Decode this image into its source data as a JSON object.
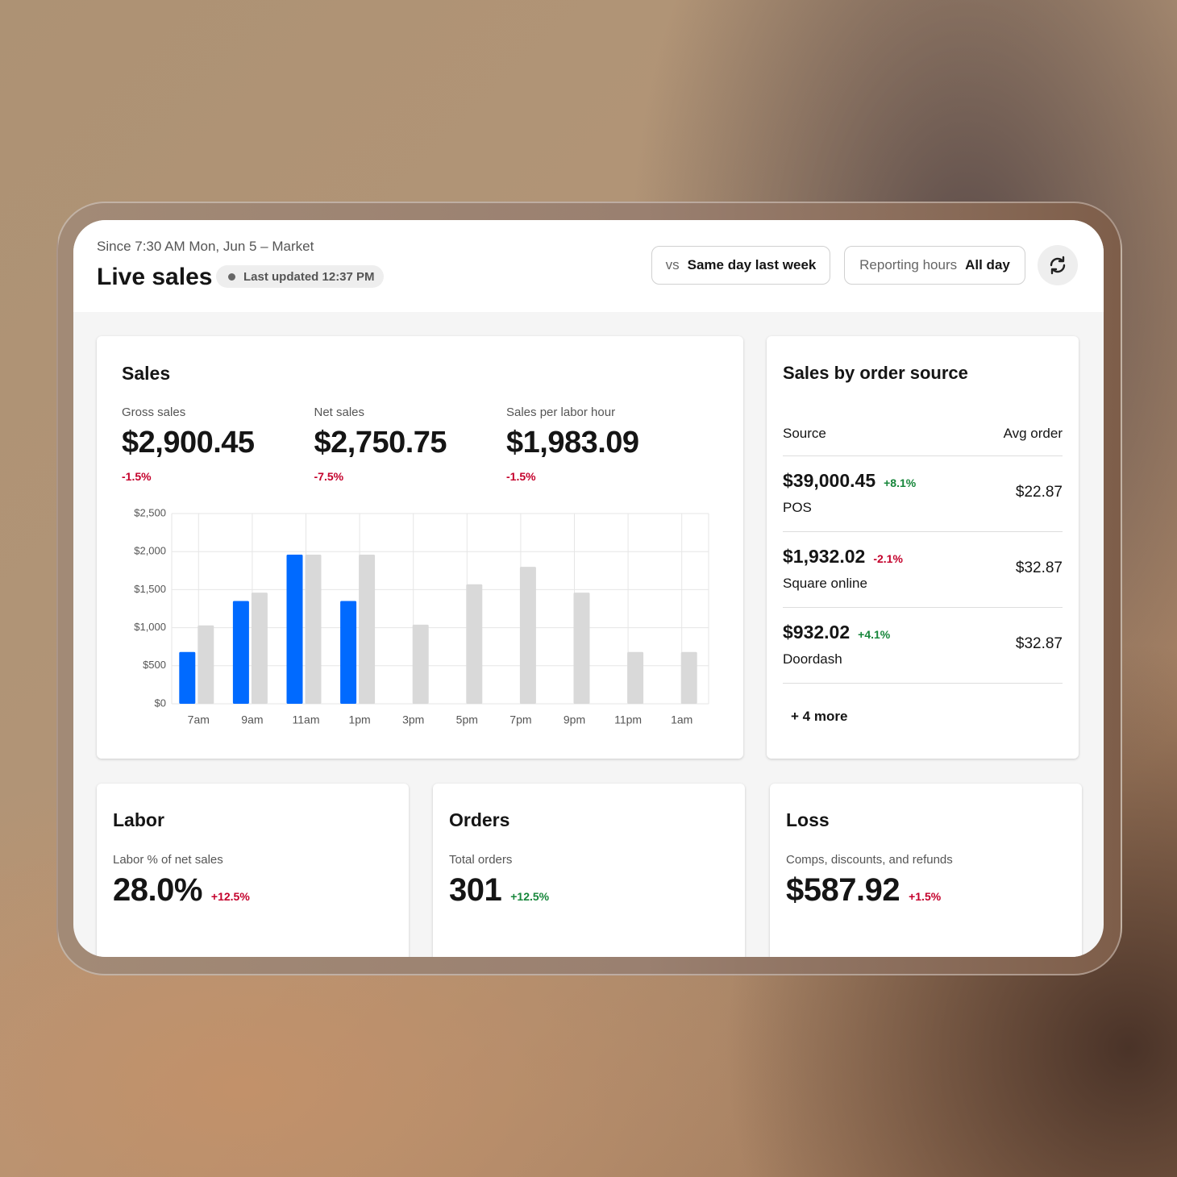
{
  "header": {
    "subtitle": "Since 7:30 AM Mon, Jun 5 – Market",
    "title": "Live sales",
    "status": "Last updated 12:37 PM",
    "compare": {
      "prefix": "vs",
      "value": "Same day last week"
    },
    "hours": {
      "label": "Reporting hours",
      "value": "All day"
    }
  },
  "sales": {
    "title": "Sales",
    "metrics": [
      {
        "label": "Gross sales",
        "value": "$2,900.45",
        "change": "-1.5%",
        "change_color": "#c4002b"
      },
      {
        "label": "Net sales",
        "value": "$2,750.75",
        "change": "-7.5%",
        "change_color": "#c4002b"
      },
      {
        "label": "Sales per labor hour",
        "value": "$1,983.09",
        "change": "-1.5%",
        "change_color": "#c4002b"
      }
    ]
  },
  "chart_data": {
    "type": "bar",
    "categories": [
      "7am",
      "9am",
      "11am",
      "1pm",
      "3pm",
      "5pm",
      "7pm",
      "9pm",
      "11pm",
      "1am"
    ],
    "series": [
      {
        "color": "#006aff",
        "values": [
          680,
          1350,
          1960,
          1350,
          null,
          null,
          null,
          null,
          null,
          null
        ]
      },
      {
        "color": "#d9d9d9",
        "values": [
          1030,
          1460,
          1960,
          1960,
          1040,
          1570,
          1800,
          1460,
          680,
          680
        ]
      }
    ],
    "ylim": [
      0,
      2500
    ],
    "yticks": [
      {
        "value": 0,
        "label": "$0"
      },
      {
        "value": 500,
        "label": "$500"
      },
      {
        "value": 1000,
        "label": "$1,000"
      },
      {
        "value": 1500,
        "label": "$1,500"
      },
      {
        "value": 2000,
        "label": "$2,000"
      },
      {
        "value": 2500,
        "label": "$2,500"
      }
    ],
    "grid": true
  },
  "sources": {
    "title": "Sales by order source",
    "columns": [
      "Source",
      "Avg order"
    ],
    "rows": [
      {
        "amount": "$39,000.45",
        "change": "+8.1%",
        "change_color": "#16863a",
        "name": "POS",
        "avg": "$22.87"
      },
      {
        "amount": "$1,932.02",
        "change": "-2.1%",
        "change_color": "#c4002b",
        "name": "Square online",
        "avg": "$32.87"
      },
      {
        "amount": "$932.02",
        "change": "+4.1%",
        "change_color": "#16863a",
        "name": "Doordash",
        "avg": "$32.87"
      }
    ],
    "more": "+ 4 more"
  },
  "cards": [
    {
      "title": "Labor",
      "label": "Labor % of net sales",
      "value": "28.0%",
      "change": "+12.5%",
      "change_color": "#c4002b"
    },
    {
      "title": "Orders",
      "label": "Total orders",
      "value": "301",
      "change": "+12.5%",
      "change_color": "#16863a"
    },
    {
      "title": "Loss",
      "label": "Comps, discounts, and refunds",
      "value": "$587.92",
      "change": "+1.5%",
      "change_color": "#c4002b"
    }
  ]
}
